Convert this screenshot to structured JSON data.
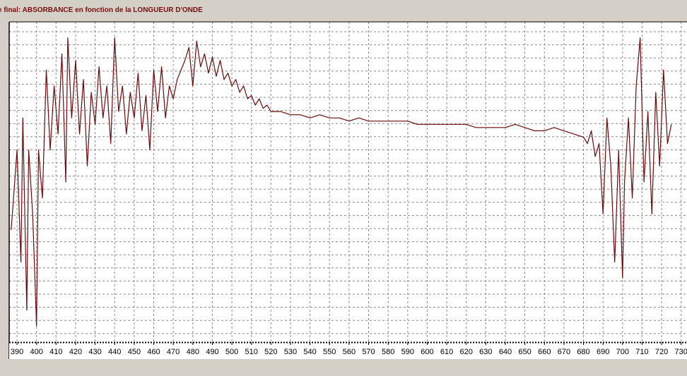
{
  "window": {
    "title": "e final: ABSORBANCE en fonction de la LONGUEUR D'ONDE"
  },
  "chart_data": {
    "type": "line",
    "title": "e final: ABSORBANCE en fonction de la LONGUEUR D'ONDE",
    "xlabel": "",
    "ylabel": "",
    "xlim": [
      386,
      733
    ],
    "ylim": [
      0,
      100
    ],
    "x_ticks": [
      390,
      400,
      410,
      420,
      430,
      440,
      450,
      460,
      470,
      480,
      490,
      500,
      510,
      520,
      530,
      540,
      550,
      560,
      570,
      580,
      590,
      600,
      610,
      620,
      630,
      640,
      650,
      660,
      670,
      680,
      690,
      700,
      710,
      720,
      730
    ],
    "grid": true,
    "legend": "none",
    "line_color": "#6b0a0a",
    "series": [
      {
        "values": [
          [
            387,
            35
          ],
          [
            390,
            60
          ],
          [
            392,
            25
          ],
          [
            393,
            70
          ],
          [
            395,
            10
          ],
          [
            396,
            60
          ],
          [
            398,
            40
          ],
          [
            400,
            5
          ],
          [
            401,
            60
          ],
          [
            403,
            45
          ],
          [
            405,
            85
          ],
          [
            407,
            60
          ],
          [
            409,
            80
          ],
          [
            411,
            65
          ],
          [
            413,
            90
          ],
          [
            415,
            50
          ],
          [
            416,
            95
          ],
          [
            418,
            70
          ],
          [
            420,
            88
          ],
          [
            422,
            65
          ],
          [
            424,
            82
          ],
          [
            426,
            55
          ],
          [
            428,
            78
          ],
          [
            430,
            68
          ],
          [
            432,
            86
          ],
          [
            434,
            70
          ],
          [
            436,
            80
          ],
          [
            438,
            62
          ],
          [
            440,
            95
          ],
          [
            442,
            72
          ],
          [
            444,
            80
          ],
          [
            446,
            65
          ],
          [
            448,
            78
          ],
          [
            450,
            70
          ],
          [
            452,
            84
          ],
          [
            454,
            66
          ],
          [
            456,
            77
          ],
          [
            458,
            60
          ],
          [
            460,
            85
          ],
          [
            462,
            72
          ],
          [
            464,
            86
          ],
          [
            466,
            70
          ],
          [
            468,
            80
          ],
          [
            470,
            76
          ],
          [
            472,
            82
          ],
          [
            474,
            85
          ],
          [
            476,
            88
          ],
          [
            478,
            92
          ],
          [
            480,
            80
          ],
          [
            482,
            94
          ],
          [
            484,
            86
          ],
          [
            486,
            90
          ],
          [
            488,
            84
          ],
          [
            490,
            89
          ],
          [
            492,
            83
          ],
          [
            494,
            88
          ],
          [
            496,
            82
          ],
          [
            498,
            84
          ],
          [
            500,
            80
          ],
          [
            502,
            82
          ],
          [
            504,
            78
          ],
          [
            506,
            80
          ],
          [
            508,
            76
          ],
          [
            510,
            77
          ],
          [
            512,
            74
          ],
          [
            514,
            76
          ],
          [
            516,
            73
          ],
          [
            518,
            74
          ],
          [
            520,
            72
          ],
          [
            525,
            72
          ],
          [
            530,
            71
          ],
          [
            535,
            71
          ],
          [
            540,
            70
          ],
          [
            545,
            71
          ],
          [
            550,
            70
          ],
          [
            555,
            70
          ],
          [
            560,
            69
          ],
          [
            565,
            70
          ],
          [
            570,
            69
          ],
          [
            575,
            69
          ],
          [
            580,
            69
          ],
          [
            585,
            69
          ],
          [
            590,
            69
          ],
          [
            595,
            68
          ],
          [
            600,
            68
          ],
          [
            605,
            68
          ],
          [
            610,
            68
          ],
          [
            615,
            68
          ],
          [
            620,
            68
          ],
          [
            625,
            67
          ],
          [
            630,
            67
          ],
          [
            635,
            67
          ],
          [
            640,
            67
          ],
          [
            645,
            68
          ],
          [
            650,
            67
          ],
          [
            655,
            66
          ],
          [
            660,
            66
          ],
          [
            665,
            67
          ],
          [
            670,
            66
          ],
          [
            675,
            65
          ],
          [
            680,
            64
          ],
          [
            682,
            62
          ],
          [
            684,
            66
          ],
          [
            686,
            58
          ],
          [
            688,
            62
          ],
          [
            690,
            40
          ],
          [
            692,
            70
          ],
          [
            694,
            55
          ],
          [
            696,
            25
          ],
          [
            698,
            60
          ],
          [
            700,
            20
          ],
          [
            701,
            50
          ],
          [
            703,
            70
          ],
          [
            705,
            45
          ],
          [
            707,
            80
          ],
          [
            709,
            95
          ],
          [
            711,
            50
          ],
          [
            713,
            72
          ],
          [
            715,
            40
          ],
          [
            717,
            78
          ],
          [
            719,
            55
          ],
          [
            721,
            85
          ],
          [
            723,
            62
          ],
          [
            725,
            68
          ]
        ]
      }
    ]
  }
}
